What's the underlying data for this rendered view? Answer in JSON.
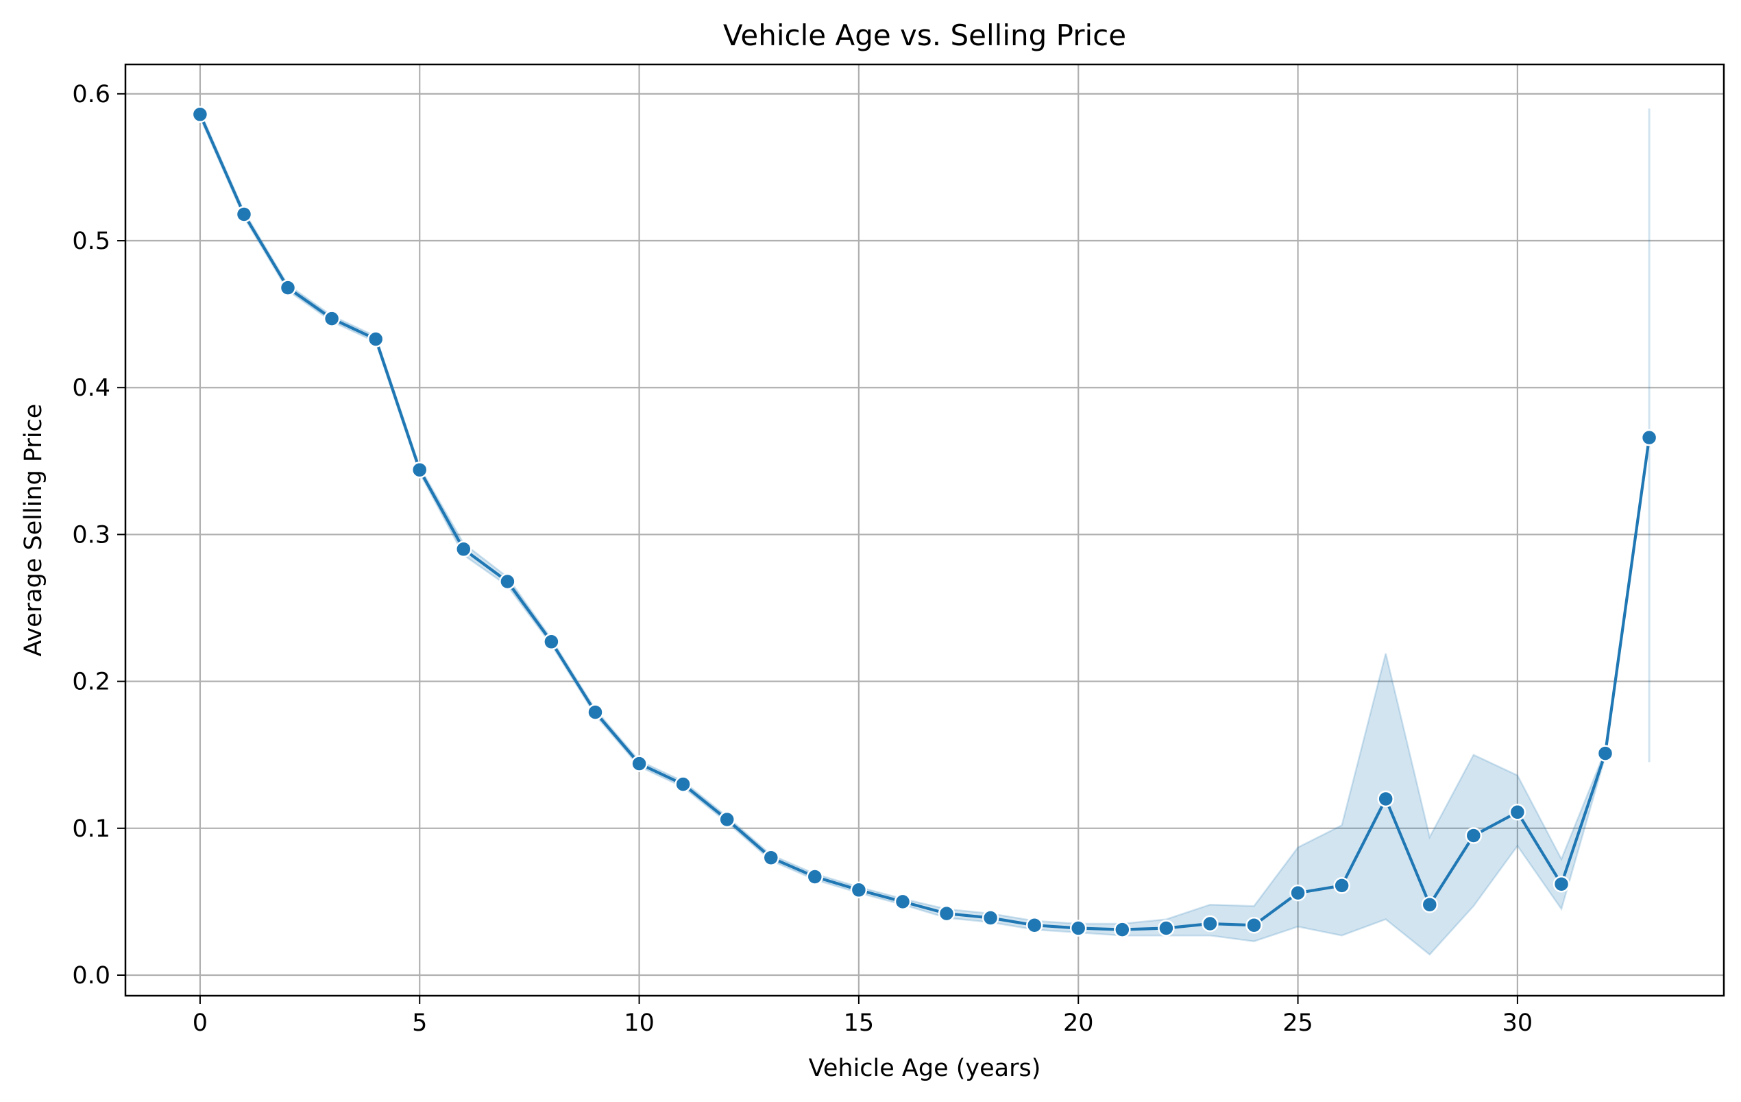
{
  "chart_data": {
    "type": "line",
    "title": "Vehicle Age vs. Selling Price",
    "xlabel": "Vehicle Age (years)",
    "ylabel": "Average Selling Price",
    "xlim": [
      -1.7,
      34.7
    ],
    "ylim": [
      -0.014,
      0.62
    ],
    "xticks": [
      0,
      5,
      10,
      15,
      20,
      25,
      30
    ],
    "yticks": [
      0.0,
      0.1,
      0.2,
      0.3,
      0.4,
      0.5,
      0.6
    ],
    "xtick_labels": [
      "0",
      "5",
      "10",
      "15",
      "20",
      "25",
      "30"
    ],
    "ytick_labels": [
      "0.0",
      "0.1",
      "0.2",
      "0.3",
      "0.4",
      "0.5",
      "0.6"
    ],
    "grid": true,
    "colors": {
      "line": "#1f77b4",
      "band": "#1f77b4",
      "grid": "#b0b0b0"
    },
    "series": [
      {
        "marker": "circle",
        "x": [
          0,
          1,
          2,
          3,
          4,
          5,
          6,
          7,
          8,
          9,
          10,
          11,
          12,
          13,
          14,
          15,
          16,
          17,
          18,
          19,
          20,
          21,
          22,
          23,
          24,
          25,
          26,
          27,
          28,
          29,
          30,
          31,
          32,
          33
        ],
        "y": [
          0.586,
          0.518,
          0.468,
          0.447,
          0.433,
          0.344,
          0.29,
          0.268,
          0.227,
          0.179,
          0.144,
          0.13,
          0.106,
          0.08,
          0.067,
          0.058,
          0.05,
          0.042,
          0.039,
          0.034,
          0.032,
          0.031,
          0.032,
          0.035,
          0.034,
          0.056,
          0.061,
          0.12,
          0.048,
          0.095,
          0.111,
          0.062,
          0.151,
          0.366
        ],
        "ci_lower": [
          0.584,
          0.516,
          0.466,
          0.445,
          0.431,
          0.342,
          0.286,
          0.265,
          0.225,
          0.177,
          0.142,
          0.128,
          0.104,
          0.078,
          0.065,
          0.056,
          0.048,
          0.039,
          0.036,
          0.031,
          0.029,
          0.027,
          0.027,
          0.027,
          0.023,
          0.033,
          0.027,
          0.038,
          0.014,
          0.047,
          0.088,
          0.045,
          0.149,
          0.145
        ],
        "ci_upper": [
          0.588,
          0.52,
          0.47,
          0.449,
          0.435,
          0.346,
          0.294,
          0.271,
          0.229,
          0.181,
          0.146,
          0.132,
          0.108,
          0.082,
          0.069,
          0.06,
          0.052,
          0.045,
          0.042,
          0.037,
          0.035,
          0.035,
          0.038,
          0.048,
          0.047,
          0.087,
          0.102,
          0.219,
          0.094,
          0.15,
          0.136,
          0.079,
          0.153,
          0.59
        ]
      }
    ]
  }
}
